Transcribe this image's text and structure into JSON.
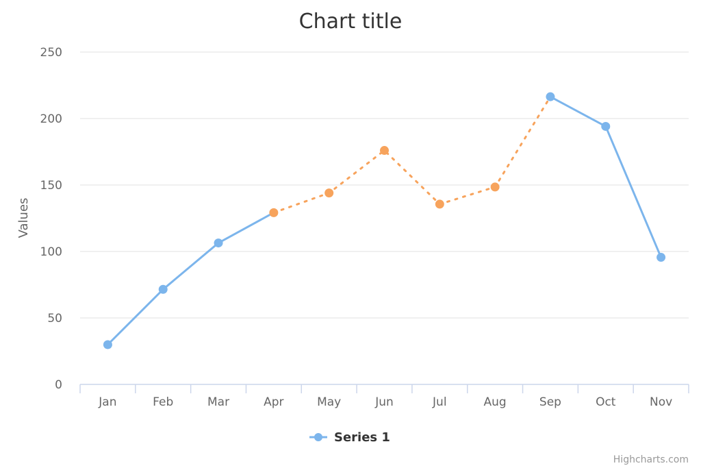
{
  "chart_data": {
    "type": "line",
    "title": "Chart title",
    "ylabel": "Values",
    "xlabel": "",
    "categories": [
      "Jan",
      "Feb",
      "Mar",
      "Apr",
      "May",
      "Jun",
      "Jul",
      "Aug",
      "Sep",
      "Oct",
      "Nov"
    ],
    "ylim": [
      0,
      250
    ],
    "yticks": [
      0,
      50,
      100,
      150,
      200,
      250
    ],
    "grid": true,
    "series": [
      {
        "name": "Series 1",
        "values": [
          29.9,
          71.5,
          106.4,
          129.2,
          144.0,
          176.0,
          135.6,
          148.5,
          216.4,
          194.1,
          95.6
        ],
        "color": "#7cb5ec",
        "zone_color": "#f7a35c",
        "zone_range": [
          "Apr",
          "Sep"
        ],
        "zone_dash": "dotted"
      }
    ],
    "legend_placement": "bottom-center"
  },
  "credits": "Highcharts.com"
}
